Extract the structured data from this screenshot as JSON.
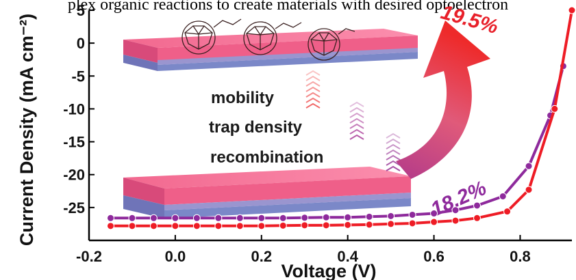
{
  "caption": "plex organic reactions to create materials with desired optoelectron",
  "chart_data": {
    "type": "line",
    "xlabel": "Voltage (V)",
    "ylabel": "Current Density (mA cm⁻²)",
    "xlim": [
      -0.2,
      0.92
    ],
    "ylim": [
      -30,
      5
    ],
    "xticks": [
      "-0.2",
      "0.0",
      "0.2",
      "0.4",
      "0.6",
      "0.8"
    ],
    "yticks": [
      "5",
      "0",
      "-5",
      "-10",
      "-15",
      "-20",
      "-25"
    ],
    "series": [
      {
        "name": "18.2%",
        "color": "#8e2a9c",
        "x": [
          -0.15,
          -0.1,
          -0.05,
          0.0,
          0.05,
          0.1,
          0.15,
          0.2,
          0.25,
          0.3,
          0.35,
          0.4,
          0.45,
          0.5,
          0.55,
          0.6,
          0.65,
          0.7,
          0.76,
          0.82,
          0.87,
          0.9
        ],
        "y": [
          -26.6,
          -26.6,
          -26.6,
          -26.6,
          -26.6,
          -26.6,
          -26.6,
          -26.6,
          -26.6,
          -26.55,
          -26.5,
          -26.5,
          -26.4,
          -26.3,
          -26.1,
          -25.9,
          -25.4,
          -24.7,
          -23.3,
          -18.7,
          -11.0,
          -3.5
        ]
      },
      {
        "name": "19.5%",
        "color": "#ee1c25",
        "x": [
          -0.15,
          -0.1,
          -0.05,
          0.0,
          0.05,
          0.1,
          0.15,
          0.2,
          0.25,
          0.3,
          0.35,
          0.4,
          0.45,
          0.5,
          0.55,
          0.6,
          0.65,
          0.7,
          0.77,
          0.82,
          0.88,
          0.92
        ],
        "y": [
          -27.8,
          -27.8,
          -27.8,
          -27.8,
          -27.8,
          -27.8,
          -27.8,
          -27.8,
          -27.75,
          -27.7,
          -27.7,
          -27.65,
          -27.6,
          -27.5,
          -27.4,
          -27.2,
          -27.0,
          -26.6,
          -25.6,
          -22.3,
          -10.0,
          5.0
        ]
      }
    ],
    "annotations": {
      "top_efficiency": "19.5%",
      "bottom_efficiency": "18.2%",
      "labels": [
        "mobility",
        "trap density",
        "recombination"
      ]
    }
  }
}
